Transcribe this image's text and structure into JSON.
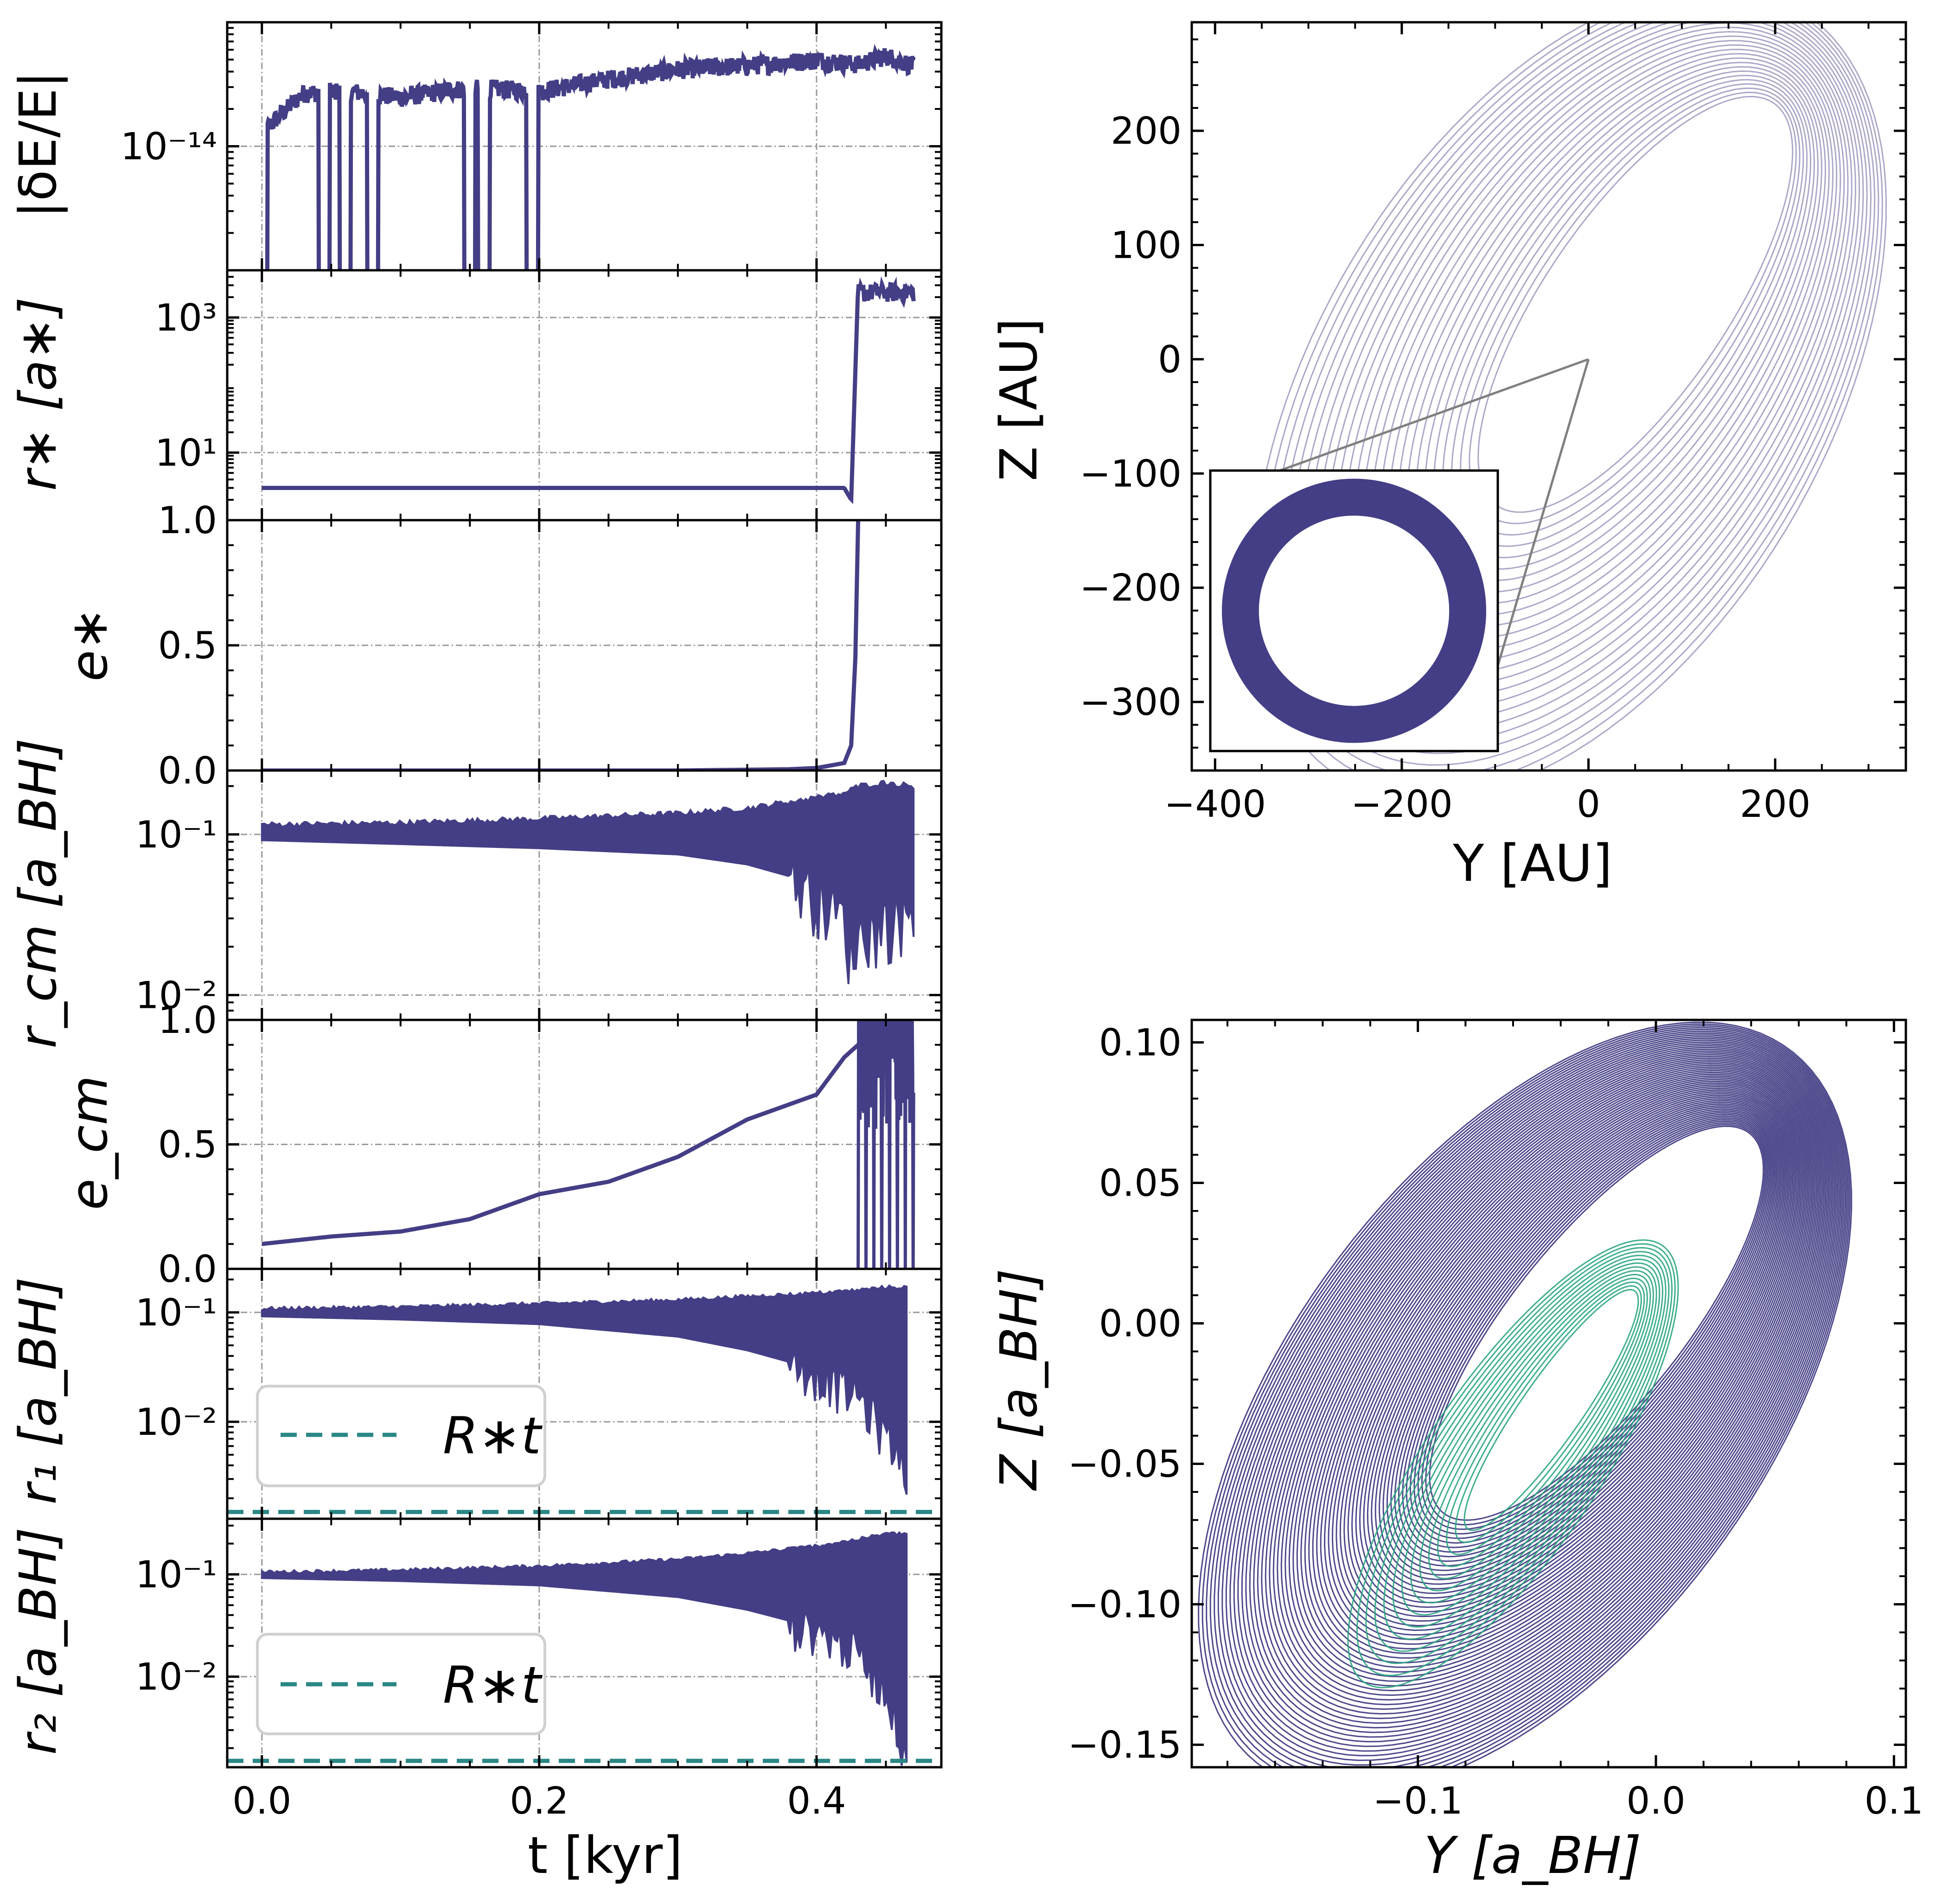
{
  "colors": {
    "series": "#433e85",
    "teal": "#2a8785",
    "green": "#2aa57f",
    "grid": "#999999",
    "connector": "#808080"
  },
  "chart_data": [
    {
      "id": "dE",
      "type": "line",
      "ylabel": "|δE/E|",
      "yscale": "log",
      "ylim": [
        1e-15,
        1e-13
      ],
      "ytick_labels": [
        "10⁻¹⁴"
      ],
      "ytick_values": [
        1e-14
      ],
      "xlim": [
        -0.025,
        0.49
      ],
      "x": [
        0.0,
        0.03,
        0.06,
        0.1,
        0.15,
        0.2,
        0.25,
        0.3,
        0.35,
        0.4,
        0.43,
        0.45,
        0.47
      ],
      "y": [
        1.3e-14,
        2.7e-14,
        2.8e-14,
        2.5e-14,
        3e-14,
        2.8e-14,
        3.5e-14,
        4.2e-14,
        4.5e-14,
        5e-14,
        4.6e-14,
        5.4e-14,
        4.5e-14
      ],
      "dips_at": [
        0.0,
        0.045,
        0.06,
        0.08,
        0.15,
        0.16,
        0.195
      ]
    },
    {
      "id": "rstar",
      "type": "line",
      "ylabel": "r∗ [a∗]",
      "yscale": "log",
      "ylim": [
        1.0,
        5000
      ],
      "ytick_labels": [
        "1.0",
        "10¹",
        "10³"
      ],
      "ytick_values": [
        1.0,
        10,
        1000
      ],
      "xlim": [
        -0.025,
        0.49
      ],
      "x": [
        0.0,
        0.42,
        0.425,
        0.43,
        0.47
      ],
      "y": [
        3.0,
        3.0,
        2.0,
        3000,
        3000
      ]
    },
    {
      "id": "estar",
      "type": "line",
      "ylabel": "e∗",
      "ylim": [
        0.0,
        1.0
      ],
      "ytick_labels": [
        "0.0",
        "0.5",
        "1.0"
      ],
      "ytick_values": [
        0.0,
        0.5,
        1.0
      ],
      "xlim": [
        -0.025,
        0.49
      ],
      "x": [
        0.0,
        0.3,
        0.38,
        0.4,
        0.42,
        0.425,
        0.428,
        0.43
      ],
      "y": [
        0.0,
        0.0,
        0.005,
        0.01,
        0.03,
        0.1,
        0.45,
        1.0
      ]
    },
    {
      "id": "rcm",
      "type": "area",
      "ylabel": "r_cm [a_BH]",
      "yscale": "log",
      "ylim": [
        0.007,
        0.25
      ],
      "ytick_labels": [
        "10⁻²",
        "10⁻¹"
      ],
      "ytick_values": [
        0.01,
        0.1
      ],
      "xlim": [
        -0.025,
        0.49
      ],
      "x": [
        0.0,
        0.1,
        0.2,
        0.3,
        0.35,
        0.38,
        0.4,
        0.42,
        0.425,
        0.43,
        0.45,
        0.47
      ],
      "upper": [
        0.115,
        0.118,
        0.125,
        0.135,
        0.145,
        0.16,
        0.17,
        0.18,
        0.19,
        0.2,
        0.21,
        0.2
      ],
      "lower": [
        0.092,
        0.087,
        0.082,
        0.075,
        0.065,
        0.055,
        0.045,
        0.03,
        0.018,
        0.025,
        0.03,
        0.035
      ]
    },
    {
      "id": "ecm",
      "type": "line",
      "ylabel": "e_cm",
      "ylim": [
        0.0,
        1.0
      ],
      "ytick_labels": [
        "0.0",
        "0.5",
        "1.0"
      ],
      "ytick_values": [
        0.0,
        0.5,
        1.0
      ],
      "xlim": [
        -0.025,
        0.49
      ],
      "x": [
        0.0,
        0.05,
        0.1,
        0.15,
        0.2,
        0.25,
        0.3,
        0.35,
        0.4,
        0.42,
        0.43,
        0.45,
        0.47
      ],
      "y": [
        0.1,
        0.13,
        0.15,
        0.2,
        0.3,
        0.35,
        0.45,
        0.6,
        0.7,
        0.85,
        0.9,
        0.9,
        0.9
      ]
    },
    {
      "id": "r1",
      "type": "area",
      "ylabel": "r₁ [a_BH]",
      "yscale": "log",
      "ylim": [
        0.0013,
        0.25
      ],
      "ytick_labels": [
        "10⁻²",
        "10⁻¹"
      ],
      "ytick_values": [
        0.01,
        0.1
      ],
      "xlim": [
        -0.025,
        0.49
      ],
      "x": [
        0.0,
        0.1,
        0.2,
        0.3,
        0.35,
        0.4,
        0.43,
        0.45,
        0.465
      ],
      "upper": [
        0.108,
        0.112,
        0.12,
        0.13,
        0.14,
        0.15,
        0.16,
        0.17,
        0.17
      ],
      "lower": [
        0.092,
        0.086,
        0.078,
        0.06,
        0.045,
        0.03,
        0.018,
        0.008,
        0.004
      ],
      "threshold": 0.0015,
      "legend": "R∗t"
    },
    {
      "id": "r2",
      "type": "area",
      "ylabel": "r₂ [a_BH]",
      "yscale": "log",
      "ylim": [
        0.0013,
        0.35
      ],
      "ytick_labels": [
        "10⁻²",
        "10⁻¹"
      ],
      "ytick_values": [
        0.01,
        0.1
      ],
      "xlim": [
        -0.025,
        0.49
      ],
      "x": [
        0.0,
        0.1,
        0.2,
        0.3,
        0.35,
        0.4,
        0.43,
        0.45,
        0.465
      ],
      "upper": [
        0.105,
        0.11,
        0.12,
        0.14,
        0.16,
        0.19,
        0.22,
        0.25,
        0.25
      ],
      "lower": [
        0.092,
        0.086,
        0.078,
        0.06,
        0.045,
        0.03,
        0.018,
        0.008,
        0.0018
      ],
      "threshold": 0.0015,
      "legend": "R∗t",
      "xlabel": "t [kyr]",
      "xtick_labels": [
        "0.0",
        "0.2",
        "0.4"
      ],
      "xtick_values": [
        0.0,
        0.2,
        0.4
      ]
    },
    {
      "id": "orbitAU",
      "type": "line",
      "xlabel": "Y [AU]",
      "ylabel": "Z [AU]",
      "xlim": [
        -425,
        340
      ],
      "ylim": [
        -360,
        295
      ],
      "xtick_labels": [
        "−400",
        "−200",
        "0",
        "200"
      ],
      "xtick_values": [
        -400,
        -200,
        0,
        200
      ],
      "ytick_labels": [
        "−300",
        "−200",
        "−100",
        "0",
        "100",
        "200"
      ],
      "ytick_values": [
        -300,
        -200,
        -100,
        0,
        100,
        200
      ],
      "orbit": {
        "center_y": -20,
        "center_z": -30,
        "semi_major": 420,
        "semi_minor": 150,
        "tilt_deg": 48,
        "loops": 26
      },
      "inset": {
        "type": "ring",
        "outer_radius": 1.0,
        "inner_radius": 0.72
      }
    },
    {
      "id": "orbitBH",
      "type": "line",
      "xlabel": "Y [a_BH]",
      "ylabel": "Z [a_BH]",
      "xlim": [
        -0.195,
        0.105
      ],
      "ylim": [
        -0.158,
        0.108
      ],
      "xtick_labels": [
        "−0.1",
        "0.0",
        "0.1"
      ],
      "xtick_values": [
        -0.1,
        0.0,
        0.1
      ],
      "ytick_labels": [
        "−0.15",
        "−0.10",
        "−0.05",
        "0.00",
        "0.05",
        "0.10"
      ],
      "ytick_values": [
        -0.15,
        -0.1,
        -0.05,
        0.0,
        0.05,
        0.1
      ],
      "orbit": {
        "center_y": -0.055,
        "center_z": -0.03,
        "semi_major": 0.17,
        "semi_minor": 0.055,
        "tilt_deg": 45,
        "loops": 60
      },
      "inner_orbit": {
        "center_y": -0.06,
        "center_z": -0.05,
        "semi_major": 0.1,
        "semi_minor": 0.02,
        "tilt_deg": 50,
        "loops": 14
      }
    }
  ]
}
